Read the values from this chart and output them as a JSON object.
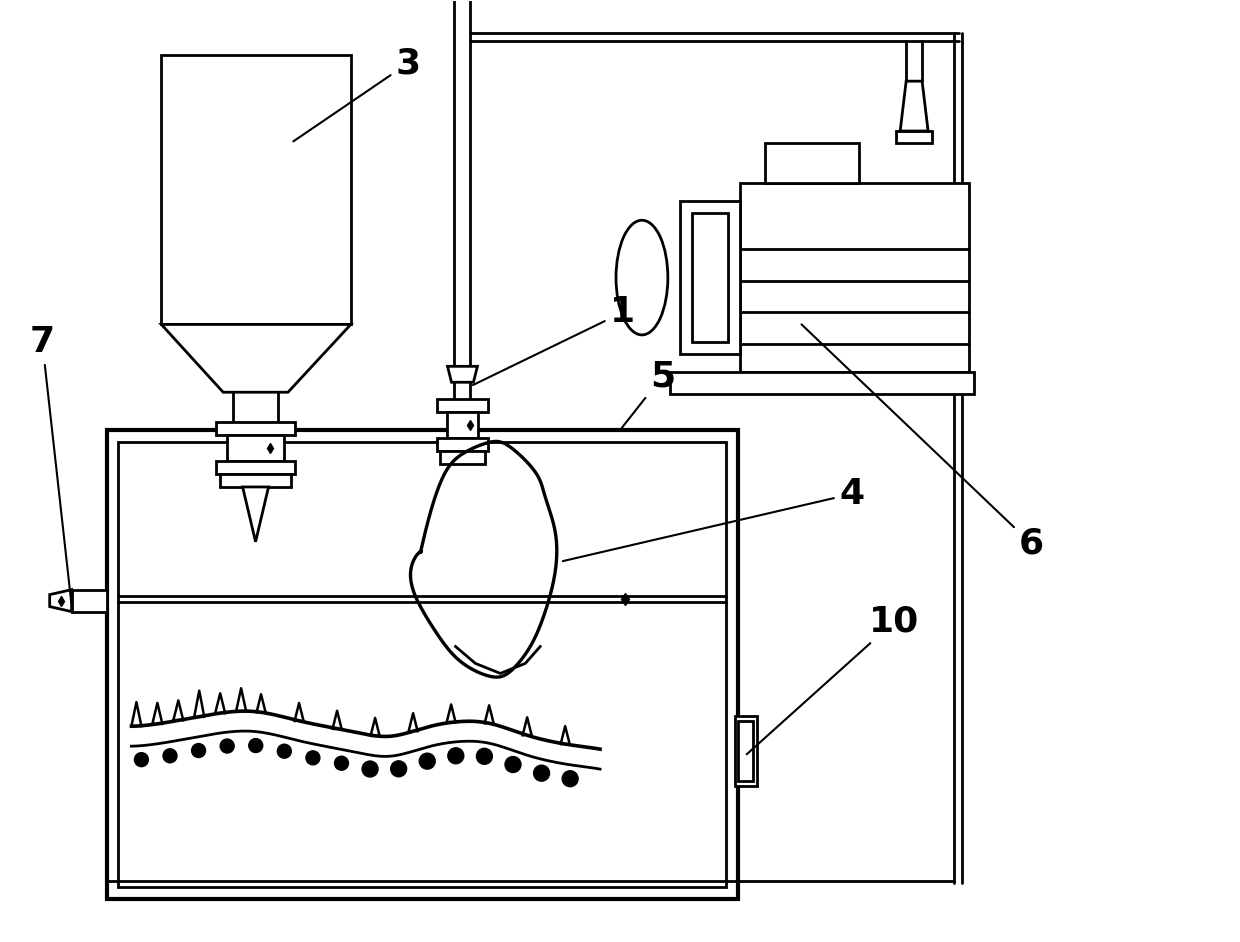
{
  "bg_color": "#ffffff",
  "line_color": "#000000",
  "lw": 2.0,
  "fig_width": 12.4,
  "fig_height": 9.42
}
